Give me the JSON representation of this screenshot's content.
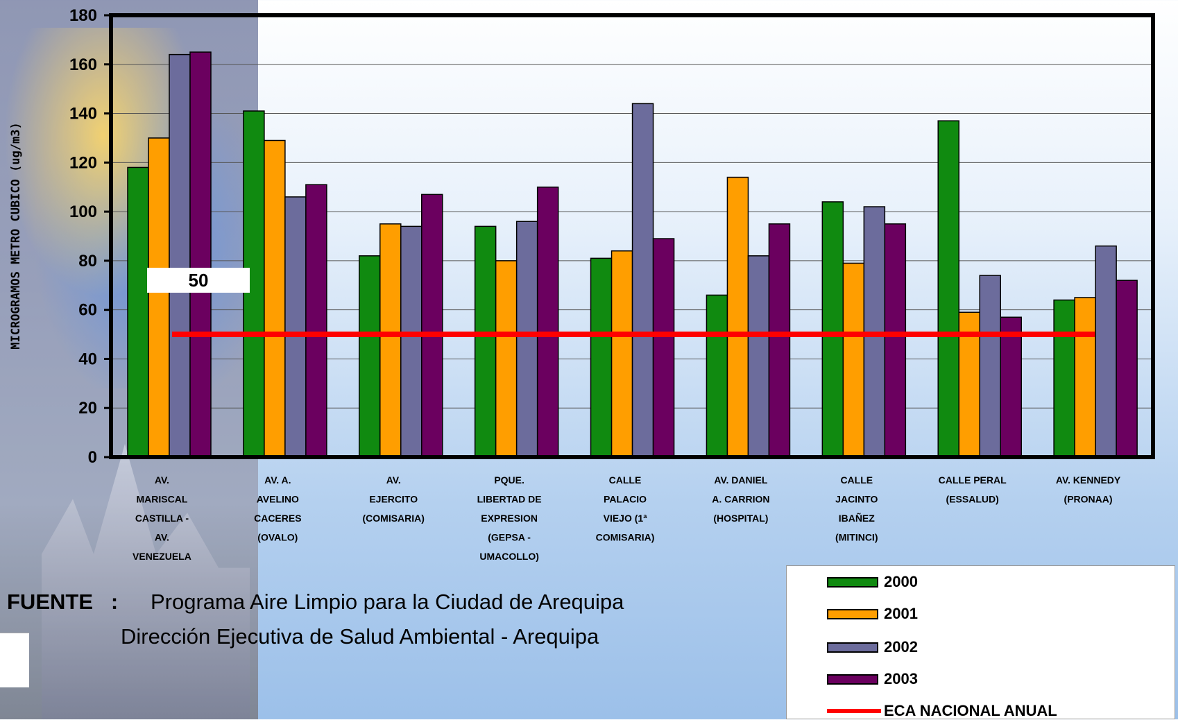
{
  "chart_data": {
    "type": "bar",
    "title": "",
    "ylabel": "MICROGRAMOS METRO CUBICO (ug/m3)",
    "xlabel": "",
    "ylim": [
      0,
      180
    ],
    "yticks": [
      0,
      20,
      40,
      60,
      80,
      100,
      120,
      140,
      160,
      180
    ],
    "grid": true,
    "legend_position": "bottom-right",
    "categories": [
      [
        "AV.",
        "MARISCAL",
        "CASTILLA -",
        "AV.",
        "VENEZUELA"
      ],
      [
        "AV. A.",
        "AVELINO",
        "CACERES",
        "(OVALO)"
      ],
      [
        "AV.",
        "EJERCITO",
        "(COMISARIA)"
      ],
      [
        "PQUE.",
        "LIBERTAD DE",
        "EXPRESION",
        "(GEPSA -",
        "UMACOLLO)"
      ],
      [
        "CALLE",
        "PALACIO",
        "VIEJO (1ª",
        "COMISARIA)"
      ],
      [
        "AV. DANIEL",
        "A. CARRION",
        "(HOSPITAL)"
      ],
      [
        "CALLE",
        "JACINTO",
        "IBAÑEZ",
        "(MITINCI)"
      ],
      [
        "CALLE PERAL",
        "(ESSALUD)"
      ],
      [
        "AV. KENNEDY",
        "(PRONAA)"
      ]
    ],
    "series": [
      {
        "name": "2000",
        "color": "#108a10",
        "values": [
          118,
          141,
          82,
          94,
          81,
          66,
          104,
          137,
          64
        ]
      },
      {
        "name": "2001",
        "color": "#ff9e00",
        "values": [
          130,
          129,
          95,
          80,
          84,
          114,
          79,
          59,
          65
        ]
      },
      {
        "name": "2002",
        "color": "#6c6c9c",
        "values": [
          164,
          106,
          94,
          96,
          144,
          82,
          102,
          74,
          86
        ]
      },
      {
        "name": "2003",
        "color": "#6b005f",
        "values": [
          165,
          111,
          107,
          110,
          89,
          95,
          95,
          57,
          72
        ]
      }
    ],
    "reference_line": {
      "name": "ECA NACIONAL ANUAL",
      "value": 50,
      "color": "#ff0000",
      "label": "50"
    }
  },
  "source": {
    "label": "FUENTE",
    "colon": ":",
    "line1": "Programa Aire Limpio para la Ciudad de Arequipa",
    "line2": "Dirección Ejecutiva de Salud Ambiental - Arequipa"
  }
}
